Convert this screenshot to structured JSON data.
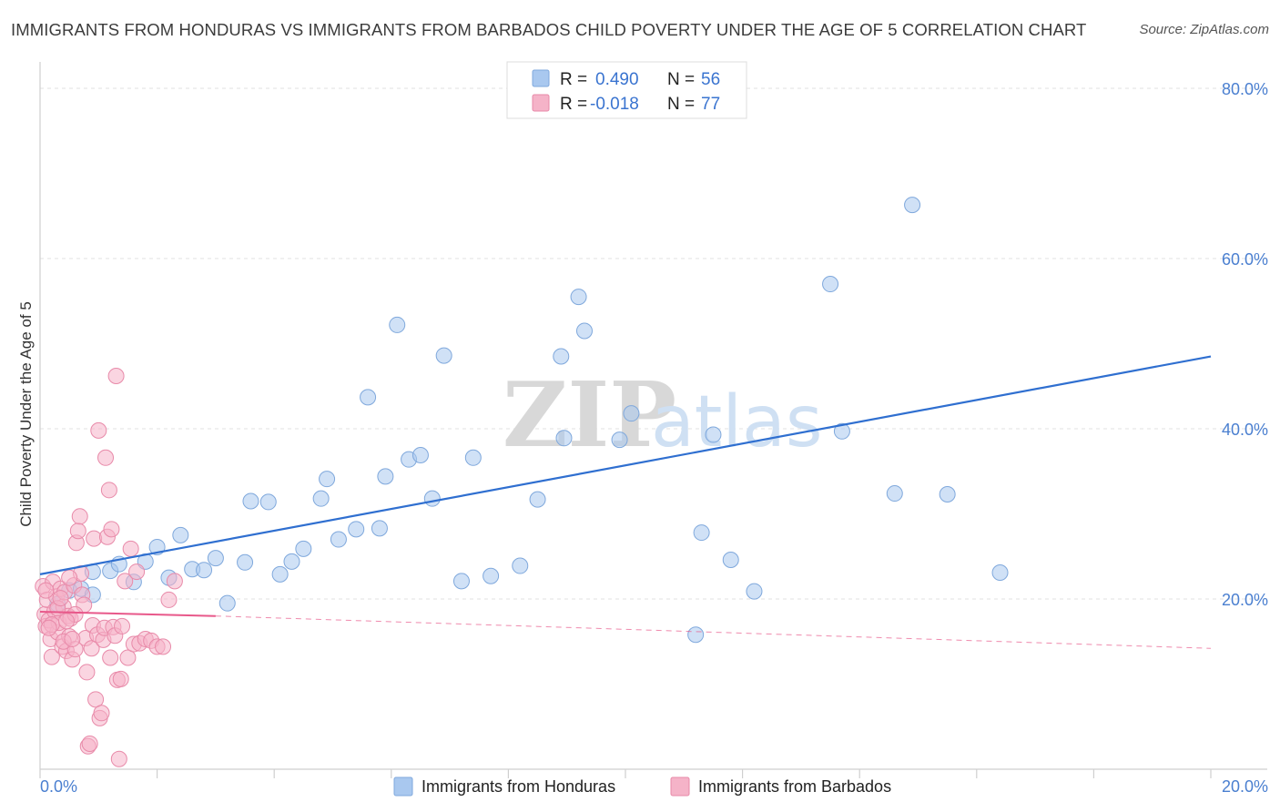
{
  "title": "IMMIGRANTS FROM HONDURAS VS IMMIGRANTS FROM BARBADOS CHILD POVERTY UNDER THE AGE OF 5 CORRELATION CHART",
  "source": "Source: ZipAtlas.com",
  "watermark": {
    "zip": "ZIP",
    "atlas": "atlas"
  },
  "legend": {
    "rows": [
      {
        "r_label": "R =",
        "r_value": "0.490",
        "n_label": "N =",
        "n_value": "56",
        "color": "#a9c8ef"
      },
      {
        "r_label": "R =",
        "r_value": "-0.018",
        "n_label": "N =",
        "n_value": "77",
        "color": "#f5b3c8"
      }
    ]
  },
  "chart_data": {
    "type": "scatter",
    "title": "IMMIGRANTS FROM HONDURAS VS IMMIGRANTS FROM BARBADOS CHILD POVERTY UNDER THE AGE OF 5 CORRELATION CHART",
    "xlabel": "",
    "ylabel": "Child Poverty Under the Age of 5",
    "xlim": [
      0,
      20
    ],
    "ylim": [
      0,
      80
    ],
    "x_ticks": [
      {
        "value": 0,
        "label": "0.0%"
      },
      {
        "value": 20,
        "label": "20.0%"
      }
    ],
    "y_ticks": [
      {
        "value": 20,
        "label": "20.0%"
      },
      {
        "value": 40,
        "label": "40.0%"
      },
      {
        "value": 60,
        "label": "60.0%"
      },
      {
        "value": 80,
        "label": "80.0%"
      }
    ],
    "grid": true,
    "legend_position": "bottom",
    "series": [
      {
        "name": "Immigrants from Honduras",
        "color": "#a9c8ef",
        "stroke": "#7fa8dc",
        "trend": {
          "x": [
            0,
            20
          ],
          "y": [
            22.9,
            48.5
          ],
          "color": "#2f6fd0"
        },
        "points": [
          [
            0.3,
            19.4
          ],
          [
            0.5,
            21.0
          ],
          [
            0.7,
            21.2
          ],
          [
            0.9,
            23.2
          ],
          [
            1.2,
            23.3
          ],
          [
            1.35,
            24.1
          ],
          [
            1.6,
            22.0
          ],
          [
            1.8,
            24.4
          ],
          [
            2.0,
            26.1
          ],
          [
            2.2,
            22.5
          ],
          [
            2.4,
            27.5
          ],
          [
            2.6,
            23.5
          ],
          [
            2.8,
            23.4
          ],
          [
            3.0,
            24.8
          ],
          [
            3.2,
            19.5
          ],
          [
            3.5,
            24.3
          ],
          [
            3.6,
            31.5
          ],
          [
            3.9,
            31.4
          ],
          [
            4.1,
            22.9
          ],
          [
            4.3,
            24.4
          ],
          [
            4.5,
            25.9
          ],
          [
            4.8,
            31.8
          ],
          [
            4.9,
            34.1
          ],
          [
            5.1,
            27.0
          ],
          [
            5.4,
            28.2
          ],
          [
            5.6,
            43.7
          ],
          [
            5.8,
            28.3
          ],
          [
            5.9,
            34.4
          ],
          [
            6.1,
            52.2
          ],
          [
            6.3,
            36.4
          ],
          [
            6.5,
            36.9
          ],
          [
            6.7,
            31.8
          ],
          [
            6.9,
            48.6
          ],
          [
            7.2,
            22.1
          ],
          [
            7.4,
            36.6
          ],
          [
            7.7,
            22.7
          ],
          [
            8.2,
            23.9
          ],
          [
            8.5,
            31.7
          ],
          [
            8.9,
            48.5
          ],
          [
            8.95,
            38.9
          ],
          [
            9.2,
            55.5
          ],
          [
            9.3,
            51.5
          ],
          [
            9.9,
            38.7
          ],
          [
            10.1,
            41.8
          ],
          [
            11.2,
            15.8
          ],
          [
            11.3,
            27.8
          ],
          [
            11.5,
            39.3
          ],
          [
            11.8,
            24.6
          ],
          [
            12.2,
            20.9
          ],
          [
            13.5,
            57.0
          ],
          [
            13.7,
            39.7
          ],
          [
            14.6,
            32.4
          ],
          [
            14.9,
            66.3
          ],
          [
            15.5,
            32.3
          ],
          [
            16.4,
            23.1
          ],
          [
            0.9,
            20.5
          ]
        ]
      },
      {
        "name": "Immigrants from Barbados",
        "color": "#f5b3c8",
        "stroke": "#e88aa9",
        "trend": {
          "x": [
            0,
            3.0,
            20
          ],
          "y": [
            18.5,
            18.0,
            14.2
          ],
          "color": "#e8588a",
          "solid_until": 3.0
        },
        "points": [
          [
            0.05,
            21.5
          ],
          [
            0.08,
            18.2
          ],
          [
            0.1,
            16.8
          ],
          [
            0.12,
            19.9
          ],
          [
            0.15,
            17.5
          ],
          [
            0.18,
            15.3
          ],
          [
            0.2,
            13.2
          ],
          [
            0.22,
            22.0
          ],
          [
            0.25,
            18.6
          ],
          [
            0.28,
            20.3
          ],
          [
            0.3,
            16.1
          ],
          [
            0.32,
            17.2
          ],
          [
            0.35,
            21.2
          ],
          [
            0.38,
            14.4
          ],
          [
            0.4,
            19.1
          ],
          [
            0.42,
            20.8
          ],
          [
            0.45,
            13.9
          ],
          [
            0.48,
            18.0
          ],
          [
            0.5,
            15.6
          ],
          [
            0.52,
            17.7
          ],
          [
            0.55,
            12.9
          ],
          [
            0.58,
            21.6
          ],
          [
            0.6,
            14.1
          ],
          [
            0.62,
            26.6
          ],
          [
            0.65,
            28.0
          ],
          [
            0.68,
            29.7
          ],
          [
            0.7,
            23.0
          ],
          [
            0.72,
            20.5
          ],
          [
            0.75,
            19.3
          ],
          [
            0.78,
            15.4
          ],
          [
            0.8,
            11.4
          ],
          [
            0.82,
            2.7
          ],
          [
            0.85,
            3.0
          ],
          [
            0.88,
            14.2
          ],
          [
            0.9,
            16.9
          ],
          [
            0.92,
            27.1
          ],
          [
            0.95,
            8.2
          ],
          [
            0.98,
            15.8
          ],
          [
            1.0,
            39.8
          ],
          [
            1.02,
            6.0
          ],
          [
            1.05,
            6.6
          ],
          [
            1.08,
            15.2
          ],
          [
            1.1,
            16.6
          ],
          [
            1.12,
            36.6
          ],
          [
            1.15,
            27.3
          ],
          [
            1.18,
            32.8
          ],
          [
            1.2,
            13.1
          ],
          [
            1.22,
            28.2
          ],
          [
            1.25,
            16.7
          ],
          [
            1.28,
            15.7
          ],
          [
            1.3,
            46.2
          ],
          [
            1.32,
            10.5
          ],
          [
            1.35,
            1.2
          ],
          [
            1.38,
            10.6
          ],
          [
            1.4,
            16.8
          ],
          [
            1.45,
            22.1
          ],
          [
            1.5,
            13.1
          ],
          [
            1.55,
            25.9
          ],
          [
            1.6,
            14.7
          ],
          [
            1.65,
            23.2
          ],
          [
            1.7,
            14.8
          ],
          [
            1.8,
            15.3
          ],
          [
            1.9,
            15.1
          ],
          [
            2.0,
            14.4
          ],
          [
            2.1,
            14.4
          ],
          [
            2.2,
            19.9
          ],
          [
            2.3,
            22.1
          ],
          [
            0.1,
            21.0
          ],
          [
            0.2,
            17.0
          ],
          [
            0.3,
            18.9
          ],
          [
            0.4,
            15.0
          ],
          [
            0.5,
            22.5
          ],
          [
            0.6,
            18.2
          ],
          [
            0.15,
            16.6
          ],
          [
            0.35,
            20.1
          ],
          [
            0.45,
            17.4
          ],
          [
            0.55,
            15.3
          ]
        ]
      }
    ]
  }
}
